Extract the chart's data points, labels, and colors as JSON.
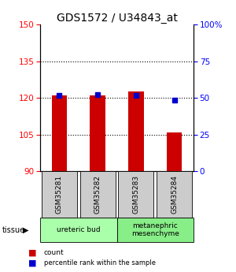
{
  "title": "GDS1572 / U34843_at",
  "samples": [
    "GSM35281",
    "GSM35282",
    "GSM35283",
    "GSM35284"
  ],
  "count_values": [
    121.0,
    121.0,
    122.5,
    106.0
  ],
  "percentile_values": [
    121.0,
    121.3,
    121.0,
    119.0
  ],
  "y_min": 90,
  "y_max": 150,
  "y_ticks": [
    90,
    105,
    120,
    135,
    150
  ],
  "y2_ticks": [
    0,
    25,
    50,
    75,
    100
  ],
  "y2_tick_labels": [
    "0",
    "25",
    "50",
    "75",
    "100%"
  ],
  "bar_color": "#cc0000",
  "blue_color": "#0000cc",
  "tissue_groups": [
    {
      "label": "ureteric bud",
      "start": 0,
      "end": 2,
      "color": "#aaffaa"
    },
    {
      "label": "metanephric\nmesenchyme",
      "start": 2,
      "end": 4,
      "color": "#88ee88"
    }
  ],
  "legend_count_color": "#cc0000",
  "legend_pct_color": "#0000cc",
  "background_color": "#ffffff",
  "sample_box_color": "#cccccc",
  "title_fontsize": 10,
  "tick_fontsize": 7.5,
  "label_fontsize": 7
}
